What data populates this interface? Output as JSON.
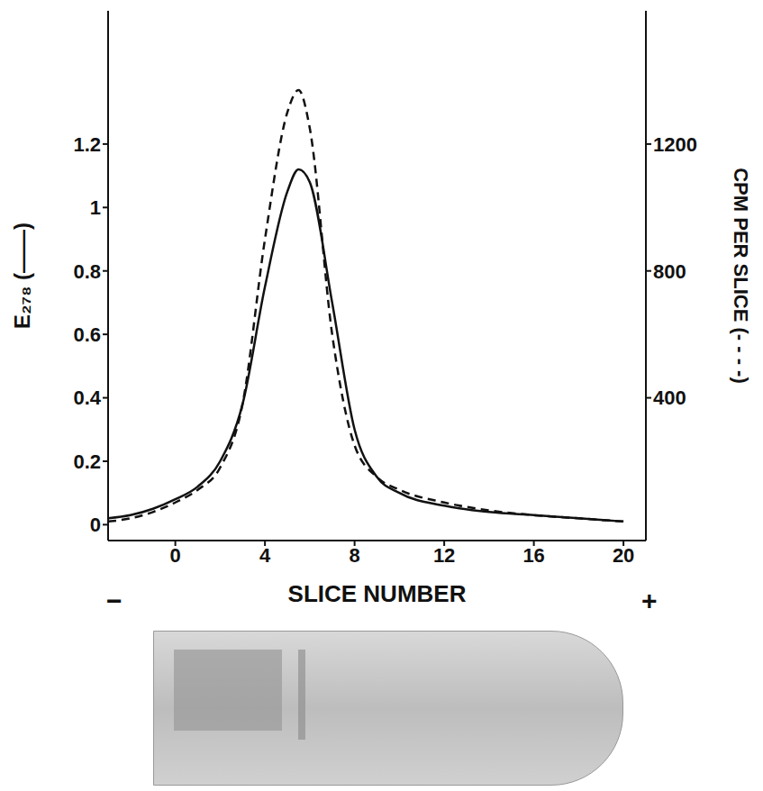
{
  "chart_data": {
    "type": "line",
    "x_label": "SLICE NUMBER",
    "y_label": "E₂₇₈ (——)",
    "y2_label": "CPM PER SLICE (- - - -)",
    "annotations": [
      "−",
      "+"
    ],
    "x": [
      -3,
      -2,
      -1,
      0,
      1,
      2,
      3,
      4,
      5,
      5.5,
      6,
      7,
      8,
      9,
      10,
      12,
      14,
      16,
      18,
      20
    ],
    "series": [
      {
        "color": "#111111",
        "line_style": "solid",
        "values": [
          0.02,
          0.03,
          0.05,
          0.08,
          0.12,
          0.2,
          0.38,
          0.75,
          1.05,
          1.12,
          1.08,
          0.7,
          0.3,
          0.15,
          0.1,
          0.06,
          0.04,
          0.03,
          0.02,
          0.01
        ]
      },
      {
        "color": "#111111",
        "line_style": "dashed",
        "axis": "y2",
        "values": [
          10,
          20,
          40,
          70,
          110,
          180,
          380,
          900,
          1300,
          1370,
          1250,
          600,
          250,
          150,
          110,
          70,
          45,
          30,
          20,
          10
        ]
      }
    ],
    "xlim": [
      -3,
      21
    ],
    "xticks": [
      0,
      4,
      8,
      12,
      16,
      20
    ],
    "ylim": [
      -0.05,
      1.62
    ],
    "yticks": [
      0,
      0.2,
      0.4,
      0.6,
      0.8,
      1,
      1.2
    ],
    "y2lim": [
      -50,
      1620
    ],
    "y2ticks": [
      400,
      800,
      1200
    ],
    "grid": false
  }
}
